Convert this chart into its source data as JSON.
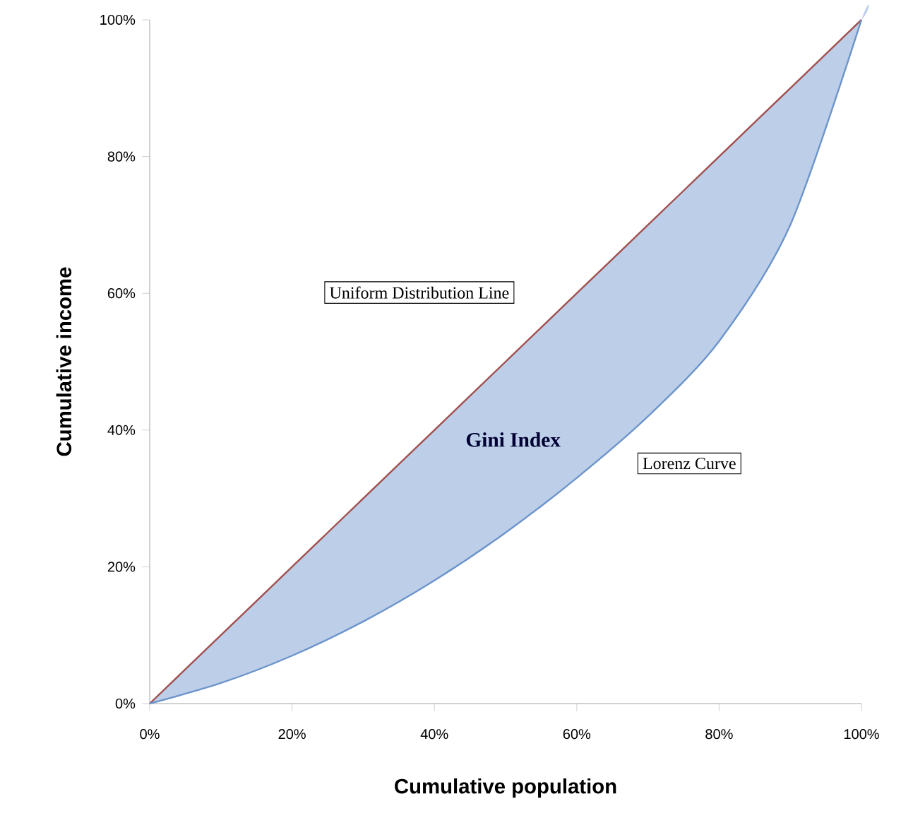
{
  "chart_data": {
    "type": "line",
    "xlabel": "Cumulative population",
    "ylabel": "Cumulative income",
    "x": [
      0,
      10,
      20,
      30,
      40,
      50,
      60,
      70,
      80,
      90,
      100
    ],
    "series": [
      {
        "name": "Uniform Distribution Line",
        "color": "#a0504d",
        "values": [
          0,
          10,
          20,
          30,
          40,
          50,
          60,
          70,
          80,
          90,
          100
        ]
      },
      {
        "name": "Lorenz Curve",
        "color": "#6c94cc",
        "values": [
          0,
          3,
          7,
          12,
          18,
          25,
          33,
          42,
          53,
          70,
          100
        ]
      }
    ],
    "xlim": [
      0,
      100
    ],
    "ylim": [
      0,
      100
    ],
    "xticks": [
      {
        "value": 0,
        "label": "0%"
      },
      {
        "value": 20,
        "label": "20%"
      },
      {
        "value": 40,
        "label": "40%"
      },
      {
        "value": 60,
        "label": "60%"
      },
      {
        "value": 80,
        "label": "80%"
      },
      {
        "value": 100,
        "label": "100%"
      }
    ],
    "yticks": [
      {
        "value": 0,
        "label": "0%"
      },
      {
        "value": 20,
        "label": "20%"
      },
      {
        "value": 40,
        "label": "40%"
      },
      {
        "value": 60,
        "label": "60%"
      },
      {
        "value": 80,
        "label": "80%"
      },
      {
        "value": 100,
        "label": "100%"
      }
    ],
    "annotations": [
      "Gini Index"
    ],
    "grid": false,
    "marker": "none",
    "line_style": "solid"
  }
}
